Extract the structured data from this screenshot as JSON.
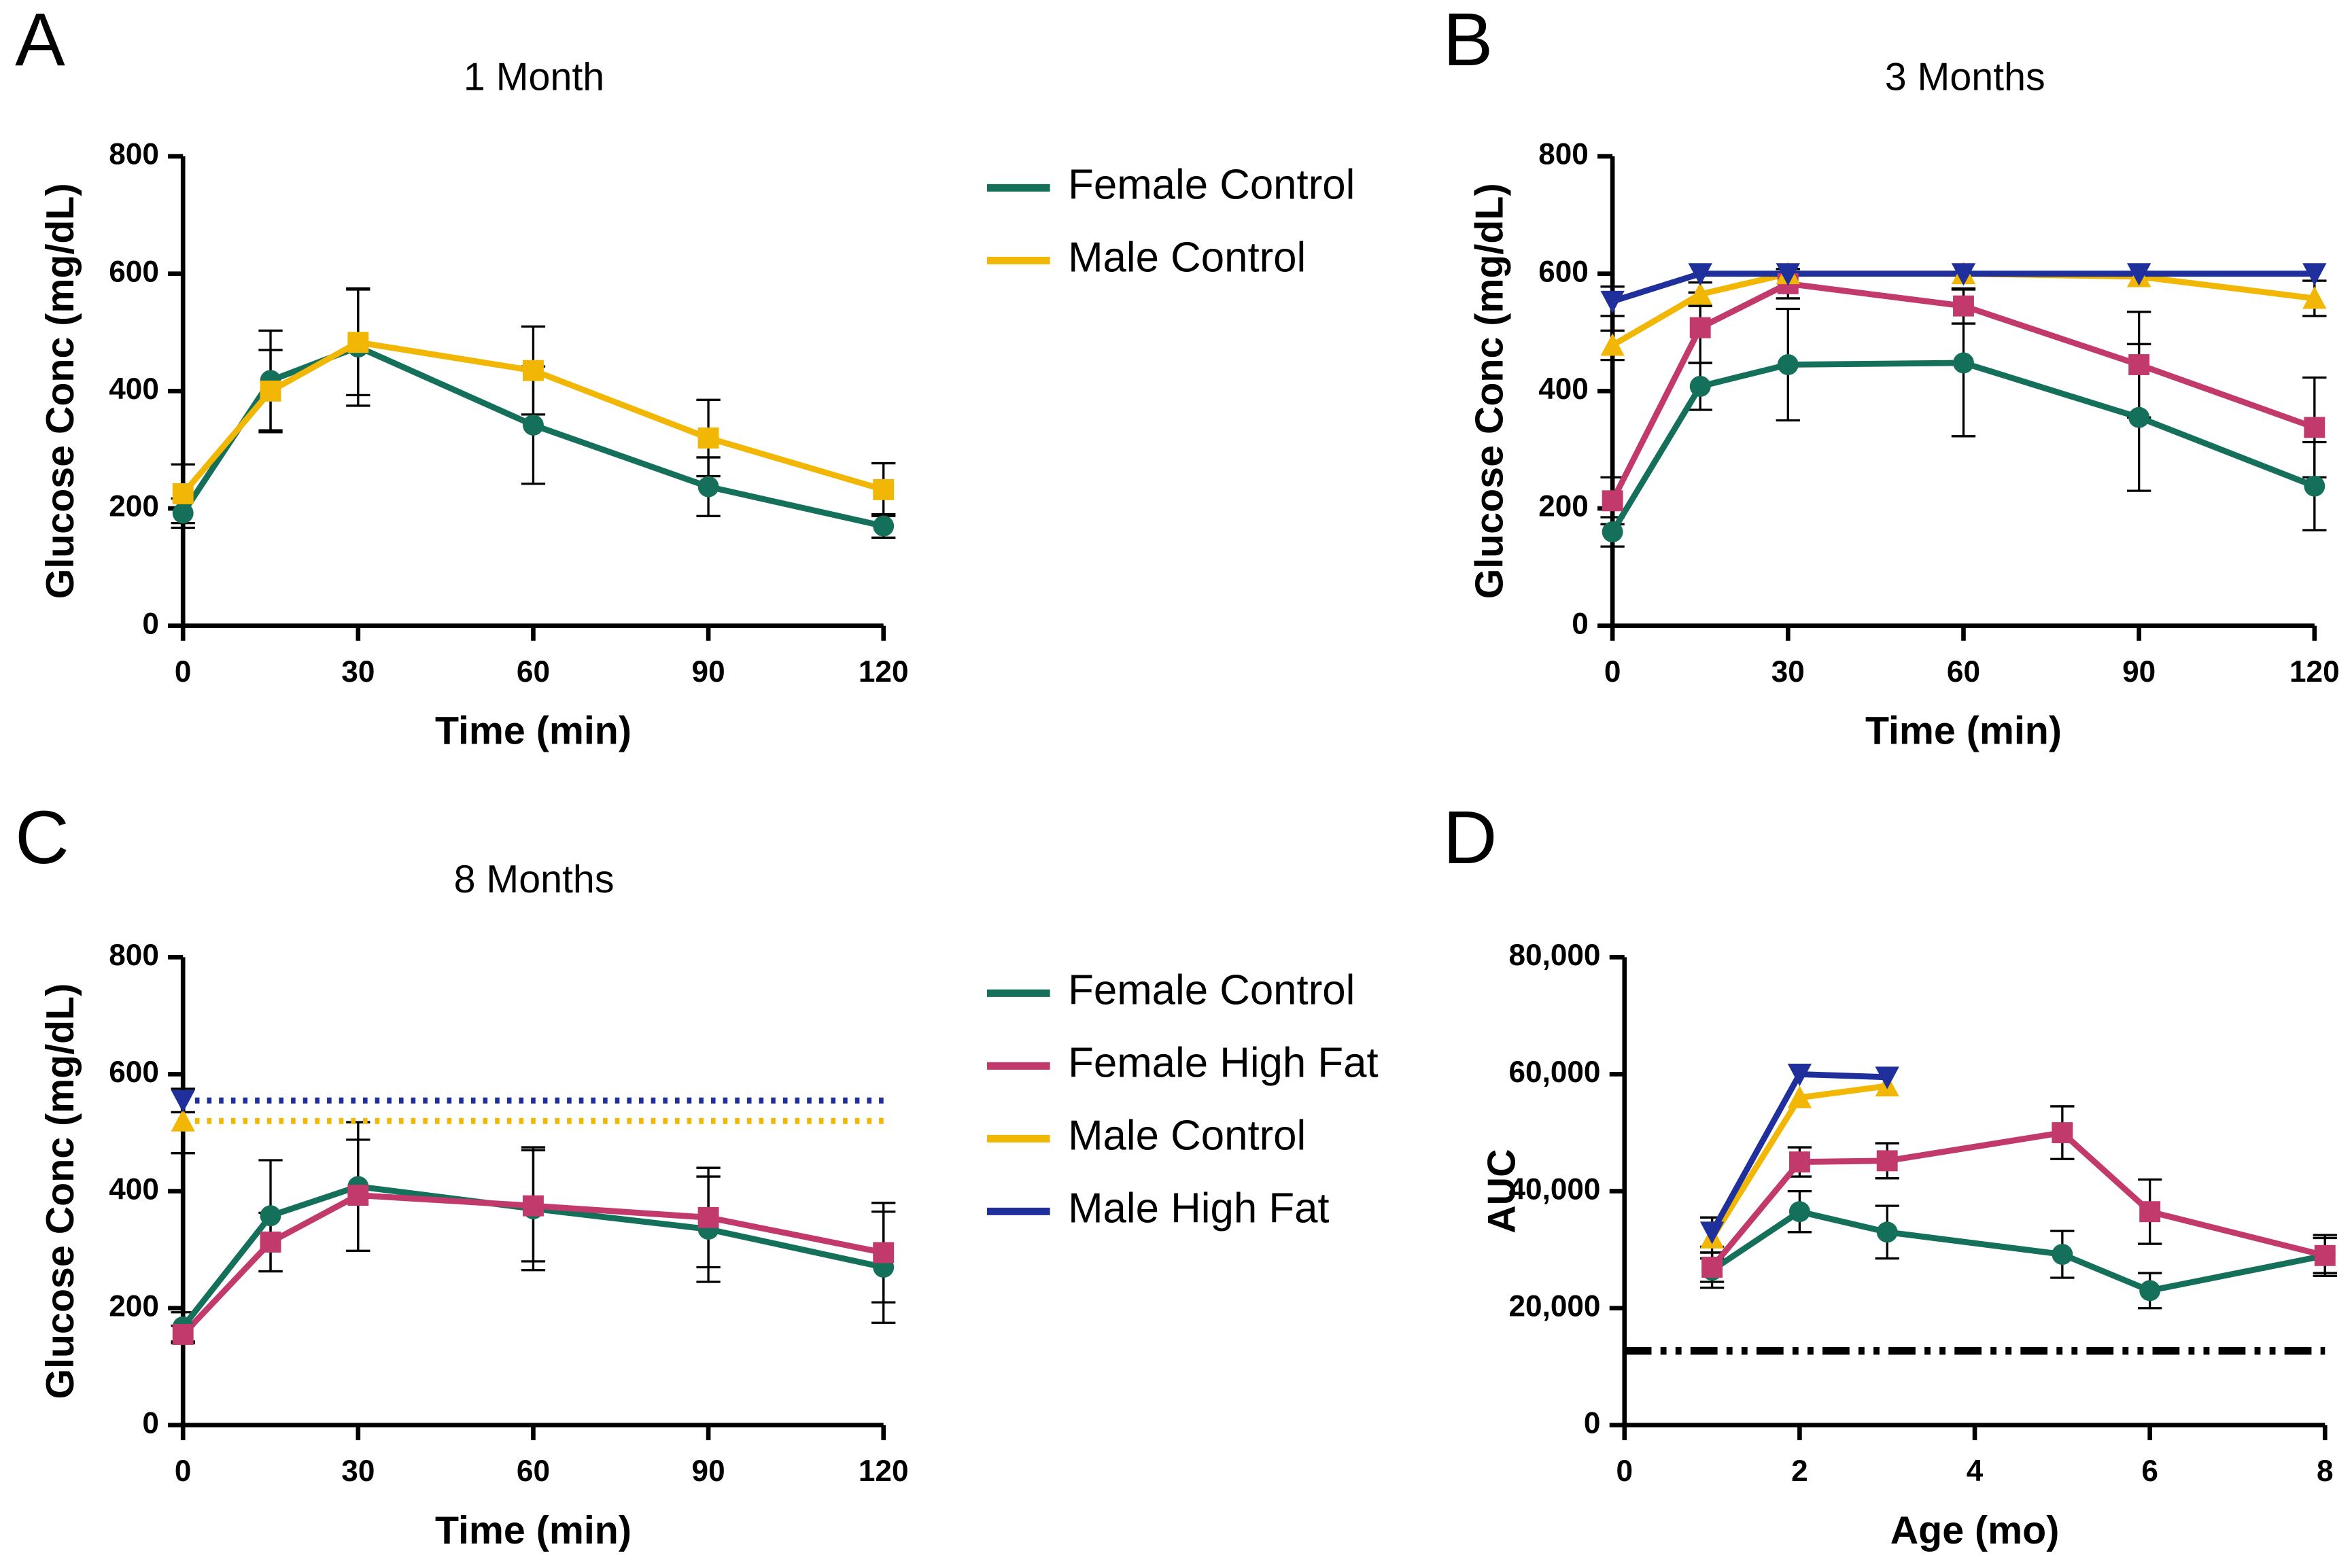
{
  "chart_data": [
    {
      "type": "line",
      "label": "A",
      "title": "1 Month",
      "xlabel": "Time (min)",
      "ylabel": "Glucose Conc (mg/dL)",
      "x": [
        0,
        15,
        30,
        60,
        90,
        120
      ],
      "xlim": [
        0,
        120
      ],
      "xticks": [
        0,
        30,
        60,
        90,
        120
      ],
      "ylim": [
        0,
        800
      ],
      "yticks": [
        0,
        200,
        400,
        600,
        800
      ],
      "legend": "right",
      "series": [
        {
          "name": "Female Control",
          "color": "#14705a",
          "marker": "circle",
          "values": [
            192,
            418,
            475,
            342,
            237,
            170
          ],
          "errors": [
            25,
            85,
            100,
            100,
            50,
            20
          ]
        },
        {
          "name": "Male Control",
          "color": "#f2b705",
          "marker": "square",
          "values": [
            225,
            400,
            483,
            435,
            320,
            232
          ],
          "errors": [
            50,
            70,
            90,
            75,
            65,
            45
          ]
        }
      ]
    },
    {
      "type": "line",
      "label": "B",
      "title": "3 Months",
      "xlabel": "Time (min)",
      "ylabel": "Glucose Conc (mg/dL)",
      "x": [
        0,
        15,
        30,
        60,
        90,
        120
      ],
      "xlim": [
        0,
        120
      ],
      "xticks": [
        0,
        30,
        60,
        90,
        120
      ],
      "ylim": [
        0,
        800
      ],
      "yticks": [
        0,
        200,
        400,
        600,
        800
      ],
      "series": [
        {
          "color": "#14705a",
          "marker": "circle",
          "values": [
            160,
            408,
            445,
            448,
            355,
            238
          ],
          "errors": [
            25,
            40,
            95,
            125,
            125,
            75
          ]
        },
        {
          "color": "#c23a6c",
          "marker": "square",
          "values": [
            213,
            508,
            583,
            545,
            445,
            338
          ],
          "errors": [
            40,
            60,
            25,
            30,
            90,
            85
          ]
        },
        {
          "color": "#f2b705",
          "marker": "triangle-up",
          "values": [
            478,
            565,
            600,
            600,
            595,
            558
          ],
          "errors": [
            25,
            20,
            0,
            0,
            0,
            30
          ]
        },
        {
          "color": "#1f2f9c",
          "marker": "triangle-down",
          "values": [
            553,
            600,
            600,
            600,
            600,
            600
          ],
          "errors": [
            25,
            0,
            0,
            0,
            0,
            0
          ]
        }
      ]
    },
    {
      "type": "line",
      "label": "C",
      "title": "8 Months",
      "xlabel": "Time (min)",
      "ylabel": "Glucose Conc (mg/dL)",
      "x": [
        0,
        15,
        30,
        60,
        90,
        120
      ],
      "xlim": [
        0,
        120
      ],
      "xticks": [
        0,
        30,
        60,
        90,
        120
      ],
      "ylim": [
        0,
        800
      ],
      "yticks": [
        0,
        200,
        400,
        600,
        800
      ],
      "legend": "right",
      "series": [
        {
          "name": "Female Control",
          "color": "#14705a",
          "marker": "circle",
          "values": [
            168,
            358,
            408,
            370,
            335,
            270
          ],
          "errors": [
            25,
            95,
            110,
            105,
            90,
            95
          ]
        },
        {
          "name": "Female High Fat",
          "color": "#c23a6c",
          "marker": "square",
          "values": [
            155,
            313,
            393,
            375,
            355,
            295
          ],
          "errors": [
            15,
            50,
            95,
            95,
            85,
            85
          ]
        },
        {
          "name": "Male Control",
          "color": "#f2b705",
          "marker": "triangle-up",
          "values": [
            520,
            null,
            null,
            null,
            null,
            null
          ],
          "errors": [
            55,
            null,
            null,
            null,
            null,
            null
          ],
          "hline": true
        },
        {
          "name": "Male High Fat",
          "color": "#1f2f9c",
          "marker": "triangle-down",
          "values": [
            555,
            null,
            null,
            null,
            null,
            null
          ],
          "errors": [
            20,
            null,
            null,
            null,
            null,
            null
          ],
          "hline": true
        }
      ]
    },
    {
      "type": "line",
      "label": "D",
      "xlabel": "Age (mo)",
      "ylabel": "AUC",
      "xlim": [
        0,
        8
      ],
      "xticks": [
        0,
        2,
        4,
        6,
        8
      ],
      "ylim": [
        0,
        80000
      ],
      "yticks": [
        0,
        {
          "value": 20000,
          "label": "20,000"
        },
        {
          "value": 40000,
          "label": "40,000"
        },
        {
          "value": 60000,
          "label": "60,000"
        },
        {
          "value": 80000,
          "label": "80,000"
        }
      ],
      "reference_line": {
        "value": 12700,
        "color": "#000000"
      },
      "series": [
        {
          "color": "#14705a",
          "marker": "circle",
          "x": [
            1,
            2,
            3,
            5,
            6,
            8
          ],
          "values": [
            26500,
            36500,
            33000,
            29200,
            23000,
            29000
          ],
          "errors": [
            3000,
            3500,
            4500,
            4000,
            3000,
            3500
          ]
        },
        {
          "color": "#c23a6c",
          "marker": "square",
          "x": [
            1,
            2,
            3,
            5,
            6,
            8
          ],
          "values": [
            27000,
            45000,
            45200,
            50000,
            36500,
            29000
          ],
          "errors": [
            2500,
            2500,
            3000,
            4500,
            5500,
            3000
          ]
        },
        {
          "color": "#f2b705",
          "marker": "triangle-up",
          "x": [
            1,
            2,
            3
          ],
          "values": [
            32000,
            56000,
            58000
          ],
          "errors": [
            3500,
            0,
            0
          ]
        },
        {
          "color": "#1f2f9c",
          "marker": "triangle-down",
          "x": [
            1,
            2,
            3
          ],
          "values": [
            33000,
            60000,
            59500
          ],
          "errors": [
            2500,
            0,
            0
          ]
        }
      ]
    }
  ]
}
